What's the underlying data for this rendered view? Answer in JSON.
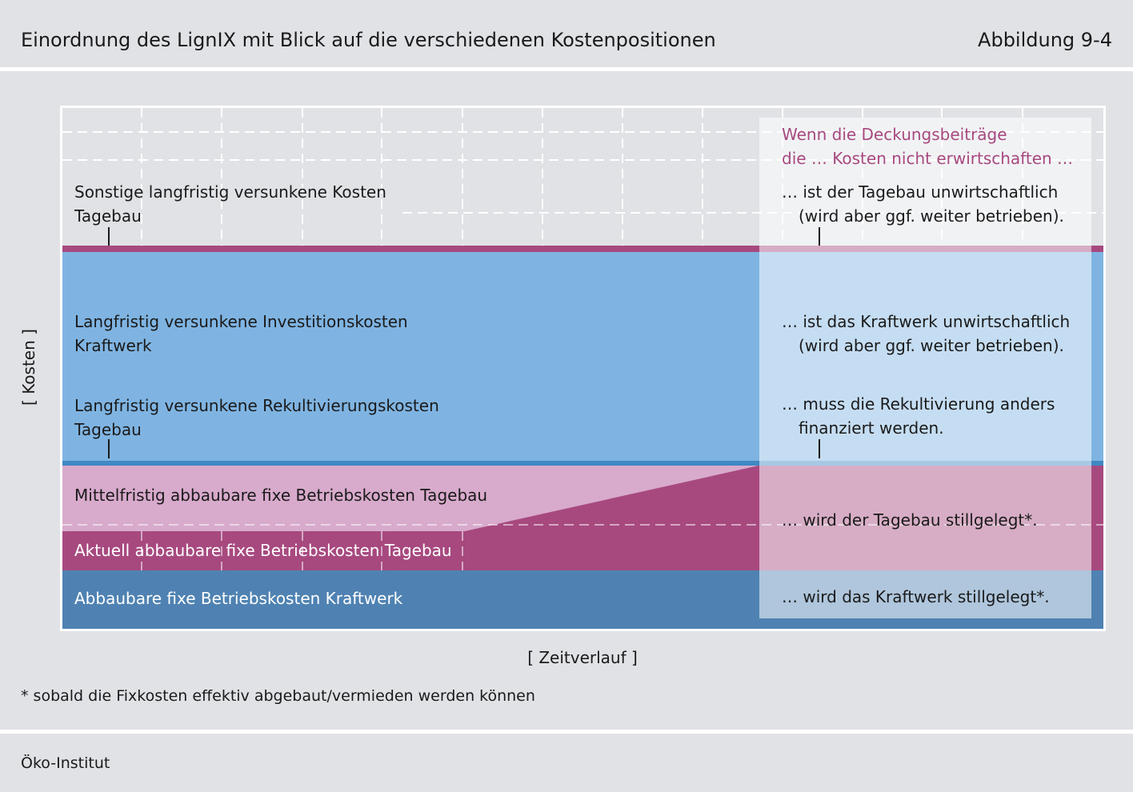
{
  "header": {
    "title": "Einordnung des LignIX mit Blick auf die verschiedenen Kostenpositionen",
    "figure_number": "Abbildung 9-4"
  },
  "diagram": {
    "y_axis_label": "[ Kosten ]",
    "x_axis_label": "[ Zeitverlauf ]",
    "bands": [
      {
        "line1": "Sonstige langfristig versunkene Kosten",
        "line2": "Tagebau"
      },
      {
        "line1": "Langfristig versunkene Investitionskosten",
        "line2": "Kraftwerk"
      },
      {
        "line1": "Langfristig versunkene Rekultivierungskosten",
        "line2": "Tagebau"
      },
      {
        "line1": "Mittelfristig abbaubare fixe Betriebskosten Tagebau"
      },
      {
        "line1": "Aktuell abbaubare fixe Betriebskosten Tagebau"
      },
      {
        "line1": "Abbaubare fixe Betriebskosten Kraftwerk"
      }
    ],
    "overlay": {
      "heading_line1": "Wenn die Deckungsbeiträge",
      "heading_line2": "die … Kosten nicht erwirtschaften …",
      "items": [
        {
          "line1": "… ist der Tagebau unwirtschaftlich",
          "line2": "(wird aber ggf. weiter betrieben)."
        },
        {
          "line1": "… ist das Kraftwerk unwirtschaftlich",
          "line2": "(wird aber ggf. weiter betrieben)."
        },
        {
          "line1": "… muss die Rekultivierung anders",
          "line2": "finanziert werden."
        },
        {
          "line1": "… wird der Tagebau stillgelegt*."
        },
        {
          "line1": "… wird das Kraftwerk stillgelegt*."
        }
      ]
    },
    "colors": {
      "background": "#e1e2e6",
      "magenta": "#a7497f",
      "light_pink": "#d8aacc",
      "light_blue": "#7fb4e2",
      "mid_blue": "#3f88c3",
      "dark_blue": "#4f82b2"
    }
  },
  "footnote": "* sobald die Fixkosten effektiv abgebaut/vermieden werden können",
  "footer": {
    "source": "Öko-Institut"
  }
}
